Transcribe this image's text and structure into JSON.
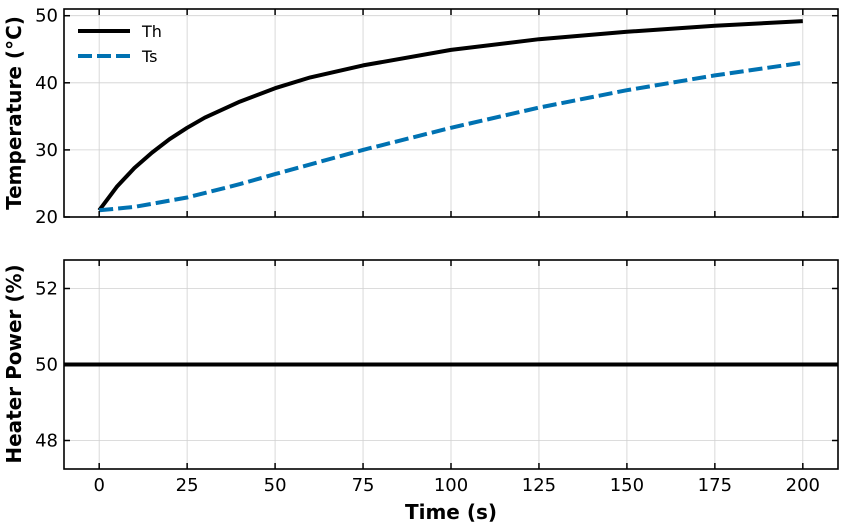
{
  "chart_data": [
    {
      "type": "line",
      "ylabel": "Temperature (°C)",
      "xlim": [
        -10,
        210
      ],
      "ylim": [
        20,
        51
      ],
      "yticks": [
        20,
        30,
        40,
        50
      ],
      "grid": true,
      "legend_position": "top-left",
      "series": [
        {
          "name": "Th",
          "color": "#000000",
          "style": "solid",
          "x": [
            0,
            5,
            10,
            15,
            20,
            25,
            30,
            40,
            50,
            60,
            75,
            100,
            125,
            150,
            175,
            200
          ],
          "y": [
            21.0,
            24.5,
            27.3,
            29.6,
            31.6,
            33.3,
            34.8,
            37.2,
            39.2,
            40.8,
            42.6,
            44.9,
            46.5,
            47.6,
            48.5,
            49.2
          ]
        },
        {
          "name": "Ts",
          "color": "#0072b2",
          "style": "dashed",
          "x": [
            0,
            10,
            25,
            40,
            50,
            75,
            100,
            125,
            150,
            175,
            200
          ],
          "y": [
            21.0,
            21.5,
            22.9,
            24.9,
            26.4,
            30.0,
            33.3,
            36.3,
            38.9,
            41.1,
            43.0
          ]
        }
      ]
    },
    {
      "type": "line",
      "xlabel": "Time (s)",
      "ylabel": "Heater Power (%)",
      "xlim": [
        -10,
        210
      ],
      "ylim": [
        47.25,
        52.75
      ],
      "yticks": [
        48,
        50,
        52
      ],
      "xticks": [
        0,
        25,
        50,
        75,
        100,
        125,
        150,
        175,
        200
      ],
      "grid": true,
      "series": [
        {
          "color": "#000000",
          "style": "solid",
          "x": [
            -10,
            210
          ],
          "y": [
            50,
            50
          ]
        }
      ]
    }
  ]
}
